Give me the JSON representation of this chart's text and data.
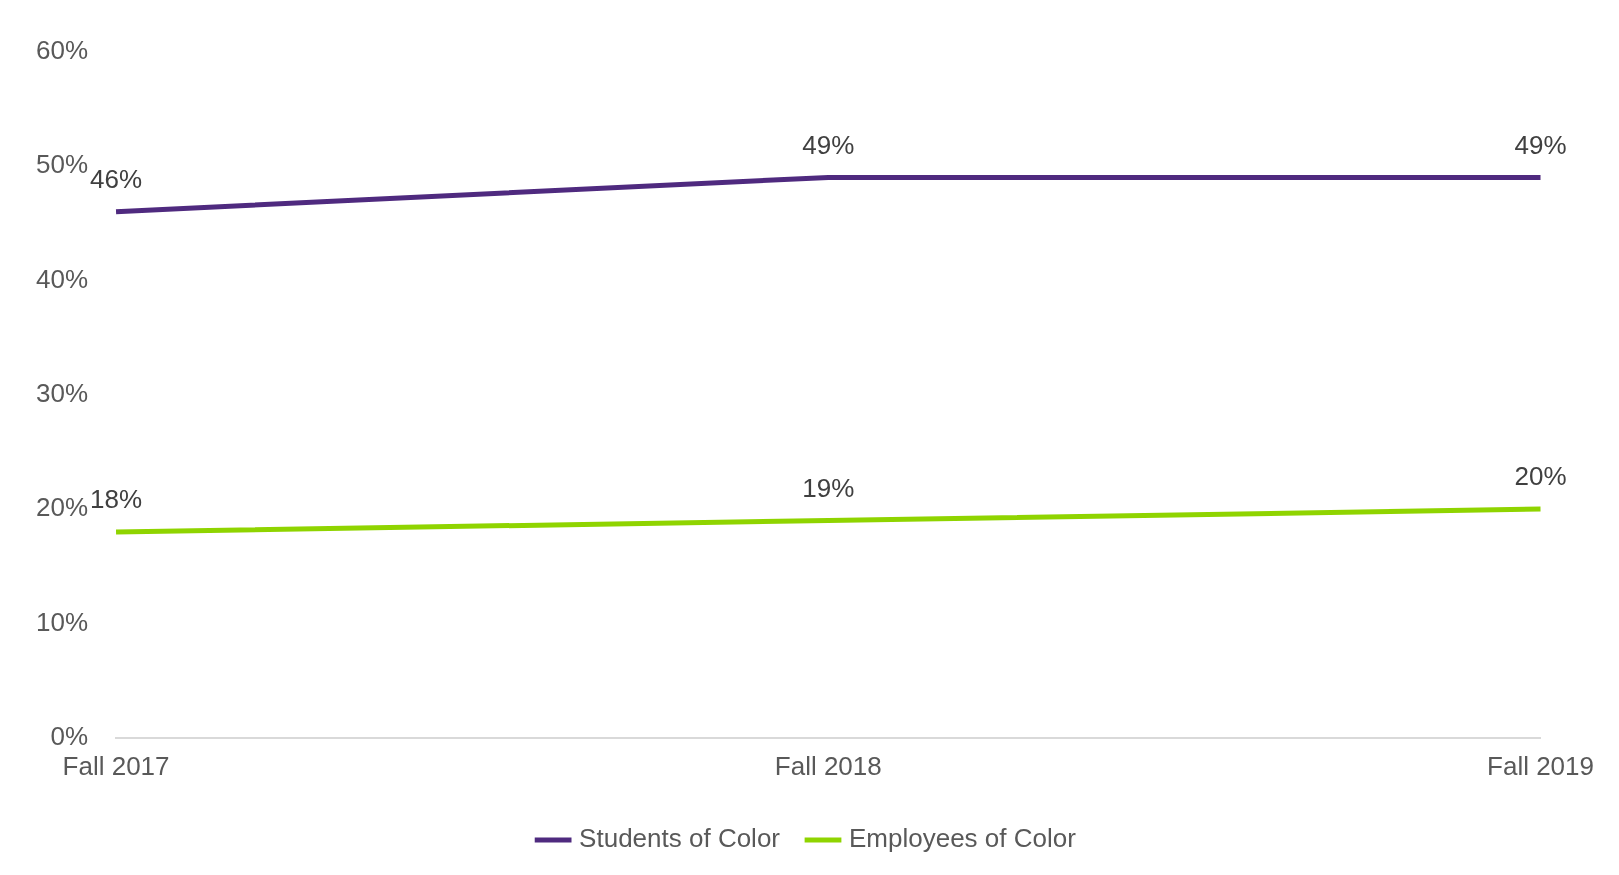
{
  "chart_data": {
    "type": "line",
    "categories": [
      "Fall 2017",
      "Fall 2018",
      "Fall 2019"
    ],
    "series": [
      {
        "name": "Students of Color",
        "color": "#4f2a7f",
        "values": [
          46,
          49,
          49
        ],
        "value_labels": [
          "46%",
          "49%",
          "49%"
        ]
      },
      {
        "name": "Employees of Color",
        "color": "#8fd400",
        "values": [
          18,
          19,
          20
        ],
        "value_labels": [
          "18%",
          "19%",
          "20%"
        ]
      }
    ],
    "ylim": [
      0,
      60
    ],
    "yticks": [
      {
        "value": 0,
        "label": "0%"
      },
      {
        "value": 10,
        "label": "10%"
      },
      {
        "value": 20,
        "label": "20%"
      },
      {
        "value": 30,
        "label": "30%"
      },
      {
        "value": 40,
        "label": "40%"
      },
      {
        "value": 50,
        "label": "50%"
      },
      {
        "value": 60,
        "label": "60%"
      }
    ],
    "grid": false,
    "legend": "bottom",
    "marker": "none",
    "line_style": "solid"
  }
}
